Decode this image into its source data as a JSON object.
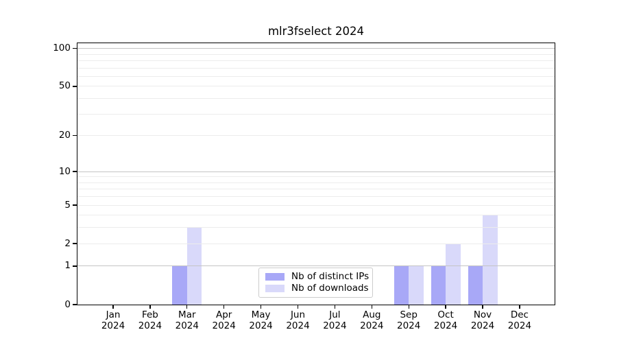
{
  "figure": {
    "title": "mlr3fselect 2024"
  },
  "legend": {
    "items": [
      {
        "label": "Nb of distinct IPs",
        "color": "#a8a8f7"
      },
      {
        "label": "Nb of downloads",
        "color": "#d9d9fa"
      }
    ]
  },
  "chart_data": {
    "type": "bar",
    "title": "mlr3fselect 2024",
    "categories": [
      "Jan 2024",
      "Feb 2024",
      "Mar 2024",
      "Apr 2024",
      "May 2024",
      "Jun 2024",
      "Jul 2024",
      "Aug 2024",
      "Sep 2024",
      "Oct 2024",
      "Nov 2024",
      "Dec 2024"
    ],
    "series": [
      {
        "name": "Nb of distinct IPs",
        "color": "#a8a8f7",
        "values": [
          0,
          0,
          1,
          0,
          0,
          0,
          0,
          0,
          1,
          1,
          1,
          0
        ]
      },
      {
        "name": "Nb of downloads",
        "color": "#d9d9fa",
        "values": [
          0,
          0,
          3,
          0,
          0,
          0,
          0,
          0,
          1,
          2,
          4,
          0
        ]
      }
    ],
    "xlabel": "",
    "ylabel": "",
    "yscale": "log1p",
    "ylim": [
      0,
      110
    ],
    "yticks": [
      0,
      1,
      2,
      5,
      10,
      20,
      50,
      100
    ],
    "grid": true,
    "grid_major_values": [
      1,
      10,
      100
    ],
    "grid_minor_values": [
      2,
      3,
      4,
      5,
      6,
      7,
      8,
      9,
      20,
      30,
      40,
      50,
      60,
      70,
      80,
      90
    ],
    "legend_position": "lower center"
  }
}
